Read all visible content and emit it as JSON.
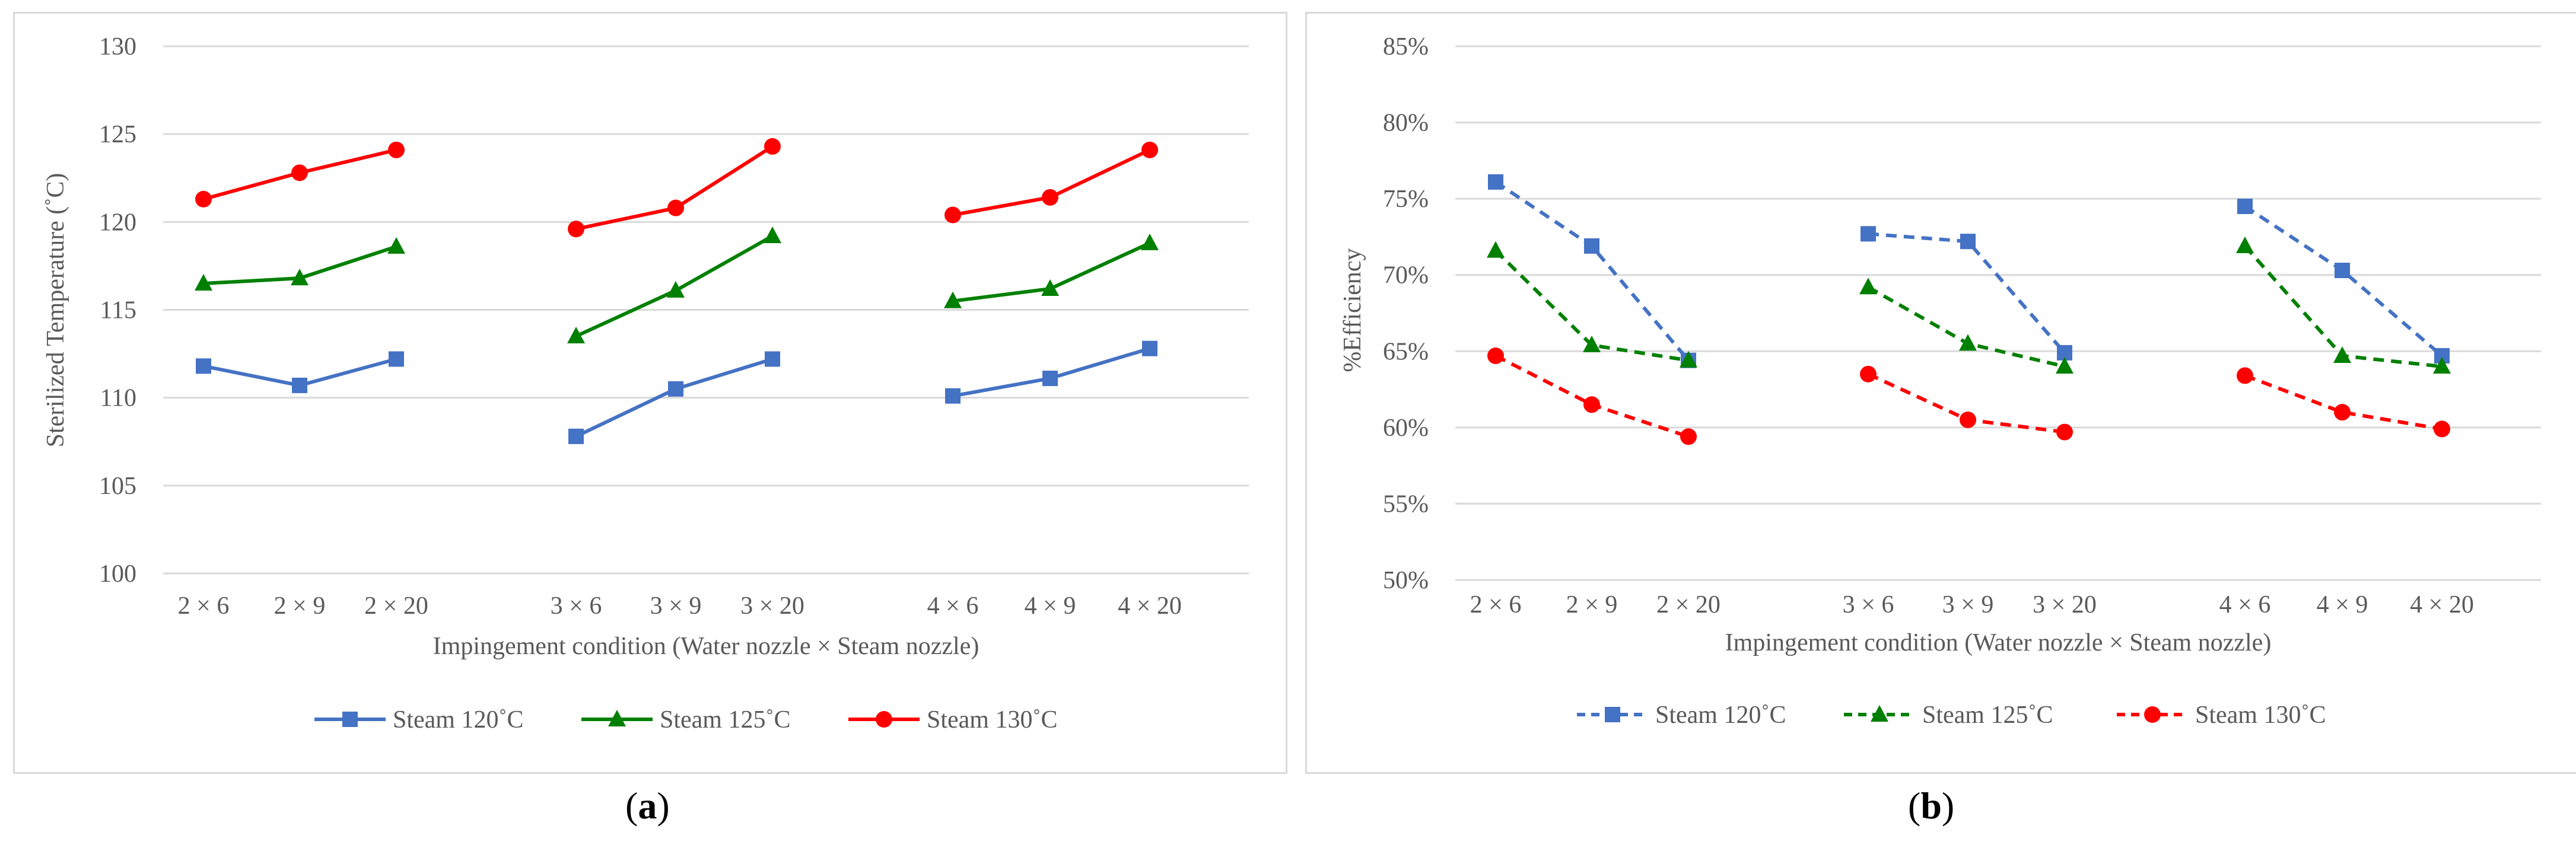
{
  "panels": [
    {
      "id": "a",
      "caption_open": "(",
      "caption_letter": "a",
      "caption_close": ")"
    },
    {
      "id": "b",
      "caption_open": "(",
      "caption_letter": "b",
      "caption_close": ")"
    }
  ],
  "chart_data": [
    {
      "type": "line",
      "title": "",
      "xlabel": "Impingement condition (Water nozzle × Steam nozzle)",
      "ylabel": "Sterilized Temperature (˚C)",
      "ylim": [
        100,
        130
      ],
      "yticks": [
        100,
        105,
        110,
        115,
        120,
        125,
        130
      ],
      "ytick_labels": [
        "100",
        "105",
        "110",
        "115",
        "120",
        "125",
        "130"
      ],
      "grid": true,
      "legend": "bottom",
      "line_style": "solid",
      "categories": [
        "2 × 6",
        "2 × 9",
        "2 × 20",
        "3 × 6",
        "3 × 9",
        "3 × 20",
        "4 × 6",
        "4 × 9",
        "4 × 20"
      ],
      "groups": [
        [
          0,
          1,
          2
        ],
        [
          3,
          4,
          5
        ],
        [
          6,
          7,
          8
        ]
      ],
      "series": [
        {
          "name": "Steam  120˚C",
          "color": "#4472c4",
          "marker": "square",
          "values": [
            111.8,
            110.7,
            112.2,
            107.8,
            110.5,
            112.2,
            110.1,
            111.1,
            112.8
          ]
        },
        {
          "name": "Steam  125˚C",
          "color": "#008000",
          "marker": "triangle",
          "values": [
            116.5,
            116.8,
            118.6,
            113.5,
            116.1,
            119.2,
            115.5,
            116.2,
            118.8
          ]
        },
        {
          "name": "Steam  130˚C",
          "color": "#ff0000",
          "marker": "circle",
          "values": [
            121.3,
            122.8,
            124.1,
            119.6,
            120.8,
            124.3,
            120.4,
            121.4,
            124.1
          ]
        }
      ]
    },
    {
      "type": "line",
      "title": "",
      "xlabel": "Impingement condition (Water nozzle × Steam nozzle)",
      "ylabel": "%Efficiency",
      "ylim": [
        50,
        85
      ],
      "yticks": [
        50,
        55,
        60,
        65,
        70,
        75,
        80,
        85
      ],
      "ytick_labels": [
        "50%",
        "55%",
        "60%",
        "65%",
        "70%",
        "75%",
        "80%",
        "85%"
      ],
      "grid": true,
      "legend": "bottom",
      "line_style": "dashed",
      "categories": [
        "2 × 6",
        "2 × 9",
        "2 × 20",
        "3 × 6",
        "3 × 9",
        "3 × 20",
        "4 × 6",
        "4 × 9",
        "4 × 20"
      ],
      "groups": [
        [
          0,
          1,
          2
        ],
        [
          3,
          4,
          5
        ],
        [
          6,
          7,
          8
        ]
      ],
      "series": [
        {
          "name": "Steam 120˚C",
          "color": "#4472c4",
          "marker": "square",
          "values": [
            76.1,
            71.9,
            64.4,
            72.7,
            72.2,
            64.9,
            74.5,
            70.3,
            64.7
          ]
        },
        {
          "name": "Steam 125˚C",
          "color": "#008000",
          "marker": "triangle",
          "values": [
            71.6,
            65.4,
            64.4,
            69.2,
            65.5,
            64.0,
            71.9,
            64.7,
            64.0
          ]
        },
        {
          "name": "Steam 130˚C",
          "color": "#ff0000",
          "marker": "circle",
          "values": [
            64.7,
            61.5,
            59.4,
            63.5,
            60.5,
            59.7,
            63.4,
            61.0,
            59.9
          ]
        }
      ]
    }
  ]
}
